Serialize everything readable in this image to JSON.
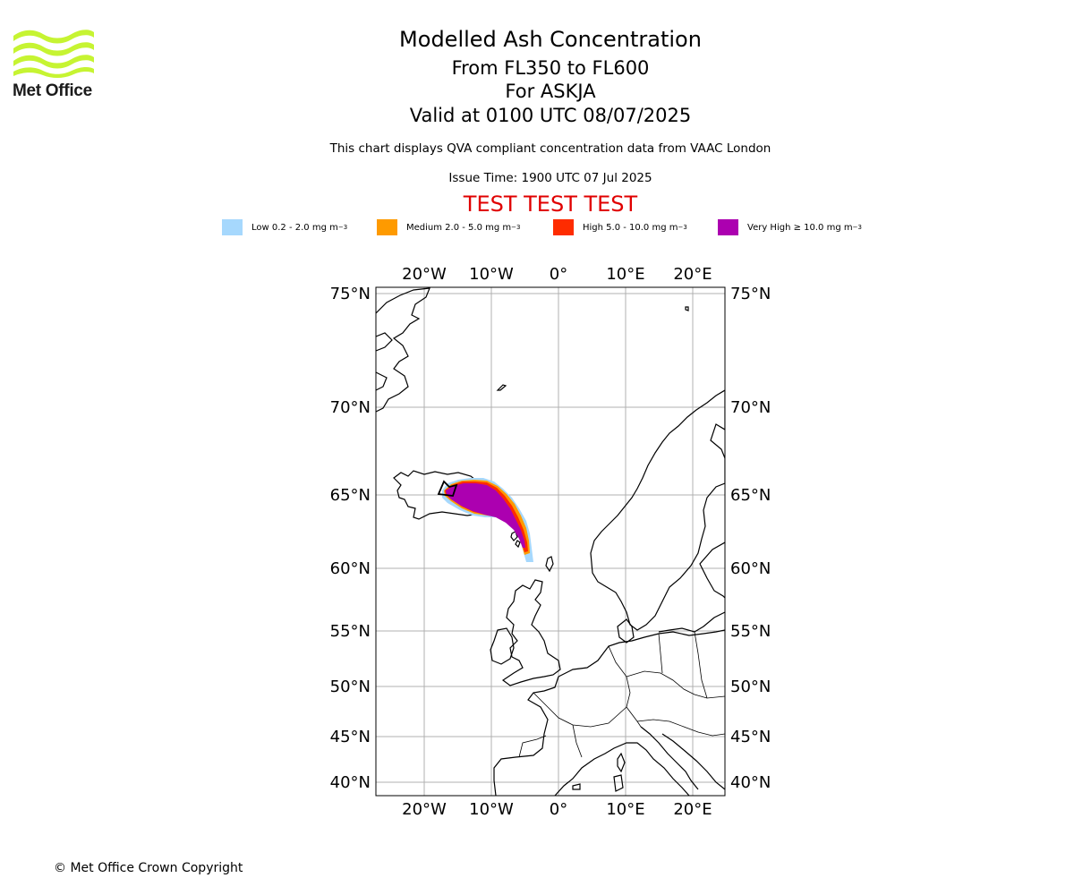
{
  "logo": {
    "text": "Met Office",
    "color": "#c6f432"
  },
  "title": {
    "line1": "Modelled Ash Concentration",
    "line2": "From FL350 to FL600",
    "line3": "For ASKJA",
    "line4": "Valid at 0100 UTC 08/07/2025"
  },
  "subtitle": "This chart displays QVA compliant concentration data from VAAC London",
  "issue_time": "Issue Time: 1900 UTC 07 Jul 2025",
  "test_banner": "TEST TEST TEST",
  "legend": [
    {
      "label": "Low 0.2 - 2.0 mg m",
      "unit_sup": "−3",
      "color": "#a6d8fd"
    },
    {
      "label": "Medium 2.0 - 5.0 mg m",
      "unit_sup": "−3",
      "color": "#fe9a00"
    },
    {
      "label": "High 5.0 - 10.0 mg m",
      "unit_sup": "−3",
      "color": "#fe2c00"
    },
    {
      "label": "Very High  ≥  10.0 mg m",
      "unit_sup": "−3",
      "color": "#ac00b0"
    }
  ],
  "map": {
    "lon_labels": [
      "20°W",
      "10°W",
      "0°",
      "10°E",
      "20°E"
    ],
    "lat_labels": [
      "75°N",
      "70°N",
      "65°N",
      "60°N",
      "55°N",
      "50°N",
      "45°N",
      "40°N"
    ],
    "lon_range": [
      "27°W",
      "25°E"
    ],
    "lat_range": [
      "39°N",
      "75°N"
    ],
    "gridlines": true,
    "ash_cloud_source": "ASKJA"
  },
  "copyright": "© Met Office Crown Copyright"
}
